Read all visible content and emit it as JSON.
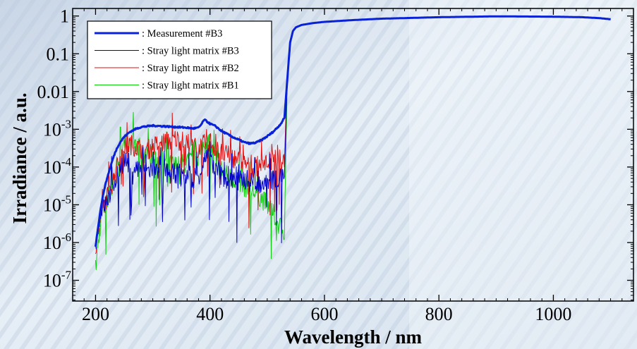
{
  "chart_data": {
    "type": "line",
    "title": "",
    "xlabel": "Wavelength / nm",
    "ylabel": "Irradiance / a.u.",
    "xlim": [
      160,
      1140
    ],
    "ylim_log10": [
      -7.55,
      0.2
    ],
    "yscale": "log",
    "x_ticks": [
      200,
      400,
      600,
      800,
      1000
    ],
    "x_tick_labels": [
      "200",
      "400",
      "600",
      "800",
      "1000"
    ],
    "y_ticks": [
      {
        "base": "10",
        "exp": "-7",
        "value": 1e-07
      },
      {
        "base": "10",
        "exp": "-6",
        "value": 1e-06
      },
      {
        "base": "10",
        "exp": "-5",
        "value": 1e-05
      },
      {
        "base": "10",
        "exp": "-4",
        "value": 0.0001
      },
      {
        "base": "10",
        "exp": "-3",
        "value": 0.001
      },
      {
        "base": "",
        "label": "0.01",
        "value": 0.01
      },
      {
        "base": "",
        "label": "0.1",
        "value": 0.1
      },
      {
        "base": "",
        "label": "1",
        "value": 1
      }
    ],
    "legend_position": "top-left",
    "grid": false,
    "series": [
      {
        "name": ": Measurement #B3",
        "color": "#0a22d6",
        "width": 3,
        "x": [
          200,
          205,
          210,
          215,
          220,
          225,
          230,
          235,
          240,
          245,
          250,
          260,
          270,
          280,
          300,
          320,
          340,
          360,
          370,
          380,
          385,
          390,
          395,
          400,
          410,
          420,
          440,
          460,
          470,
          480,
          490,
          500,
          510,
          520,
          525,
          530,
          535,
          540,
          545,
          550,
          560,
          580,
          600,
          650,
          700,
          800,
          900,
          1000,
          1050,
          1080,
          1100
        ],
        "y": [
          8e-07,
          3e-06,
          1e-05,
          2.5e-05,
          5e-05,
          9e-05,
          0.00016,
          0.00026,
          0.00038,
          0.0005,
          0.00063,
          0.00085,
          0.00102,
          0.00115,
          0.00125,
          0.0012,
          0.00115,
          0.0011,
          0.00105,
          0.0011,
          0.00135,
          0.0018,
          0.0016,
          0.0014,
          0.0012,
          0.0009,
          0.00062,
          0.00045,
          0.00042,
          0.00044,
          0.00052,
          0.00065,
          0.00085,
          0.0012,
          0.0015,
          0.002,
          0.02,
          0.2,
          0.4,
          0.5,
          0.58,
          0.65,
          0.7,
          0.78,
          0.85,
          0.93,
          0.98,
          0.96,
          0.93,
          0.88,
          0.82
        ]
      },
      {
        "name": ": Stray light matrix #B3",
        "color": "#0000c8",
        "width": 1,
        "x": [
          200,
          210,
          220,
          230,
          240,
          250,
          260,
          270,
          280,
          290,
          300,
          310,
          320,
          330,
          340,
          350,
          360,
          370,
          380,
          390,
          400,
          410,
          420,
          430,
          440,
          450,
          460,
          470,
          480,
          490,
          500,
          510,
          520,
          530,
          535,
          540,
          545,
          550,
          560,
          580,
          600,
          650,
          700,
          800,
          900,
          1000,
          1050,
          1080,
          1100
        ],
        "y": [
          1e-06,
          8e-06,
          1.2e-05,
          3e-05,
          8e-05,
          0.00015,
          0.00012,
          9e-05,
          0.0001,
          8e-05,
          9e-05,
          7e-05,
          8e-05,
          6e-05,
          7e-05,
          6e-05,
          6e-05,
          5e-05,
          6e-05,
          0.00015,
          0.00018,
          9e-05,
          6e-05,
          5e-05,
          5e-05,
          4e-05,
          5e-05,
          4e-05,
          4e-05,
          3.5e-05,
          4e-05,
          4.5e-05,
          5e-05,
          5e-05,
          0.02,
          0.2,
          0.4,
          0.5,
          0.58,
          0.65,
          0.7,
          0.78,
          0.85,
          0.93,
          0.98,
          0.96,
          0.93,
          0.88,
          0.82
        ],
        "noise": true
      },
      {
        "name": ": Stray light matrix #B2",
        "color": "#e01010",
        "width": 1,
        "x": [
          200,
          210,
          220,
          230,
          240,
          250,
          260,
          270,
          280,
          290,
          300,
          310,
          320,
          330,
          340,
          350,
          360,
          370,
          380,
          390,
          400,
          410,
          420,
          430,
          440,
          450,
          460,
          470,
          480,
          490,
          500,
          510,
          520,
          530,
          535,
          540,
          545,
          550,
          560,
          580,
          600,
          650,
          700,
          800,
          900,
          1000,
          1050,
          1080,
          1100
        ],
        "y": [
          6e-07,
          6e-06,
          1.5e-05,
          4e-05,
          0.00012,
          0.00035,
          0.0004,
          0.00035,
          0.0003,
          0.00028,
          0.00035,
          0.0004,
          0.00045,
          0.0005,
          0.00055,
          0.0005,
          0.0004,
          0.00035,
          0.0003,
          0.0004,
          0.0005,
          0.0003,
          0.00022,
          0.0002,
          0.00018,
          0.00015,
          0.00012,
          0.0001,
          0.0001,
          0.00011,
          0.00013,
          0.00015,
          0.00016,
          0.00015,
          0.02,
          0.2,
          0.4,
          0.5,
          0.58,
          0.65,
          0.7,
          0.78,
          0.85,
          0.93,
          0.98,
          0.96,
          0.93,
          0.88,
          0.82
        ],
        "noise": true
      },
      {
        "name": ": Stray light matrix #B1",
        "color": "#10d010",
        "width": 1,
        "x": [
          200,
          210,
          220,
          230,
          240,
          250,
          260,
          270,
          280,
          290,
          300,
          310,
          320,
          330,
          340,
          350,
          360,
          370,
          380,
          390,
          400,
          410,
          420,
          430,
          440,
          450,
          460,
          470,
          480,
          490,
          500,
          510,
          520,
          530,
          535,
          540,
          545,
          550,
          560,
          580,
          600,
          650,
          700,
          800,
          900,
          1000,
          1050,
          1080,
          1100
        ],
        "y": [
          2e-07,
          5e-06,
          1.2e-05,
          3e-05,
          0.00013,
          0.00038,
          0.00042,
          0.00032,
          0.00028,
          0.0002,
          0.0002,
          0.00015,
          0.00013,
          0.00012,
          0.00011,
          0.00012,
          0.00013,
          0.00015,
          0.0002,
          0.0004,
          0.00035,
          0.00015,
          9e-05,
          6e-05,
          5e-05,
          4e-05,
          3e-05,
          2.5e-05,
          2e-05,
          1.5e-05,
          1e-05,
          6e-06,
          3e-06,
          2e-06,
          0.02,
          0.2,
          0.4,
          0.5,
          0.58,
          0.65,
          0.7,
          0.78,
          0.85,
          0.93,
          0.98,
          0.96,
          0.93,
          0.88,
          0.82
        ],
        "noise": true
      }
    ]
  }
}
